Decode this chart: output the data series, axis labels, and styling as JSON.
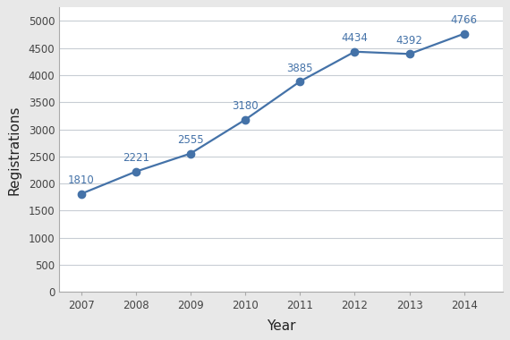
{
  "years": [
    2007,
    2008,
    2009,
    2010,
    2011,
    2012,
    2013,
    2014
  ],
  "values": [
    1810,
    2221,
    2555,
    3180,
    3885,
    4434,
    4392,
    4766
  ],
  "line_color": "#4472a8",
  "marker_color": "#4472a8",
  "xlabel": "Year",
  "ylabel": "Registrations",
  "ylim": [
    0,
    5250
  ],
  "yticks": [
    0,
    500,
    1000,
    1500,
    2000,
    2500,
    3000,
    3500,
    4000,
    4500,
    5000
  ],
  "figure_bg_color": "#e8e8e8",
  "plot_bg_color": "#ffffff",
  "grid_color": "#c8cdd4",
  "label_color": "#4472a8",
  "label_fontsize": 8.5,
  "axis_label_fontsize": 11,
  "tick_fontsize": 8.5,
  "tick_color": "#444444"
}
